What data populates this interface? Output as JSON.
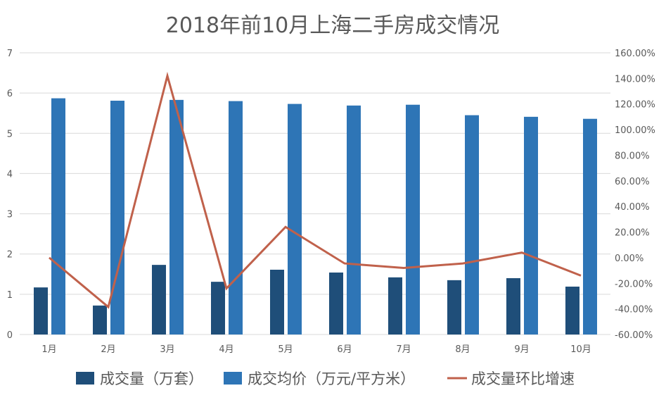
{
  "chart_data": {
    "type": "bar",
    "title": "2018年前10月上海二手房成交情况",
    "categories": [
      "1月",
      "2月",
      "3月",
      "4月",
      "5月",
      "6月",
      "7月",
      "8月",
      "9月",
      "10月"
    ],
    "series": [
      {
        "name": "成交量（万套）",
        "type": "bar",
        "axis": "left",
        "color": "#1f4e79",
        "values": [
          1.17,
          0.72,
          1.73,
          1.31,
          1.61,
          1.54,
          1.42,
          1.35,
          1.4,
          1.19
        ]
      },
      {
        "name": "成交均价（万元/平方米）",
        "type": "bar",
        "axis": "left",
        "color": "#2e75b6",
        "values": [
          5.87,
          5.81,
          5.83,
          5.8,
          5.73,
          5.69,
          5.71,
          5.45,
          5.41,
          5.36
        ]
      },
      {
        "name": "成交量环比增速",
        "type": "line",
        "axis": "right",
        "color": "#c0614b",
        "values": [
          0,
          -38.5,
          142,
          -24,
          24,
          -4.5,
          -8,
          -4.5,
          4,
          -14
        ]
      }
    ],
    "ylim": [
      0,
      7
    ],
    "y_ticks": [
      "0",
      "1",
      "2",
      "3",
      "4",
      "5",
      "6",
      "7"
    ],
    "y2lim": [
      -60,
      160
    ],
    "y2_ticks": [
      "-60.00%",
      "-40.00%",
      "-20.00%",
      "0.00%",
      "20.00%",
      "40.00%",
      "60.00%",
      "80.00%",
      "100.00%",
      "120.00%",
      "140.00%",
      "160.00%"
    ],
    "grid": true,
    "legend": "bottom"
  }
}
